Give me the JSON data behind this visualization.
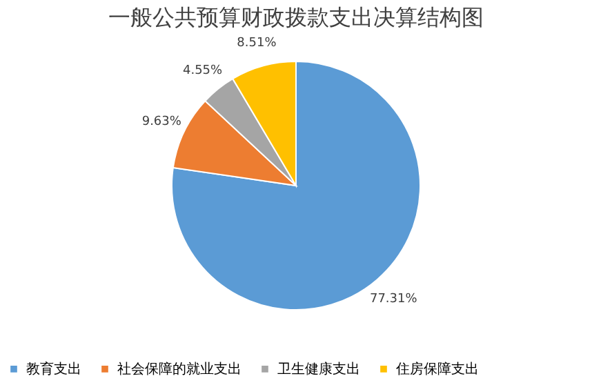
{
  "chart_data": {
    "type": "pie",
    "title": "一般公共预算财政拨款支出决算结构图",
    "categories": [
      "教育支出",
      "社会保障的就业支出",
      "卫生健康支出",
      "住房保障支出"
    ],
    "values": [
      77.31,
      9.63,
      4.55,
      8.51
    ],
    "colors": [
      "#5b9bd5",
      "#ed7d31",
      "#a5a5a5",
      "#ffc000"
    ],
    "value_labels": [
      "77.31%",
      "9.63%",
      "4.55%",
      "8.51%"
    ],
    "legend": "bottom"
  }
}
